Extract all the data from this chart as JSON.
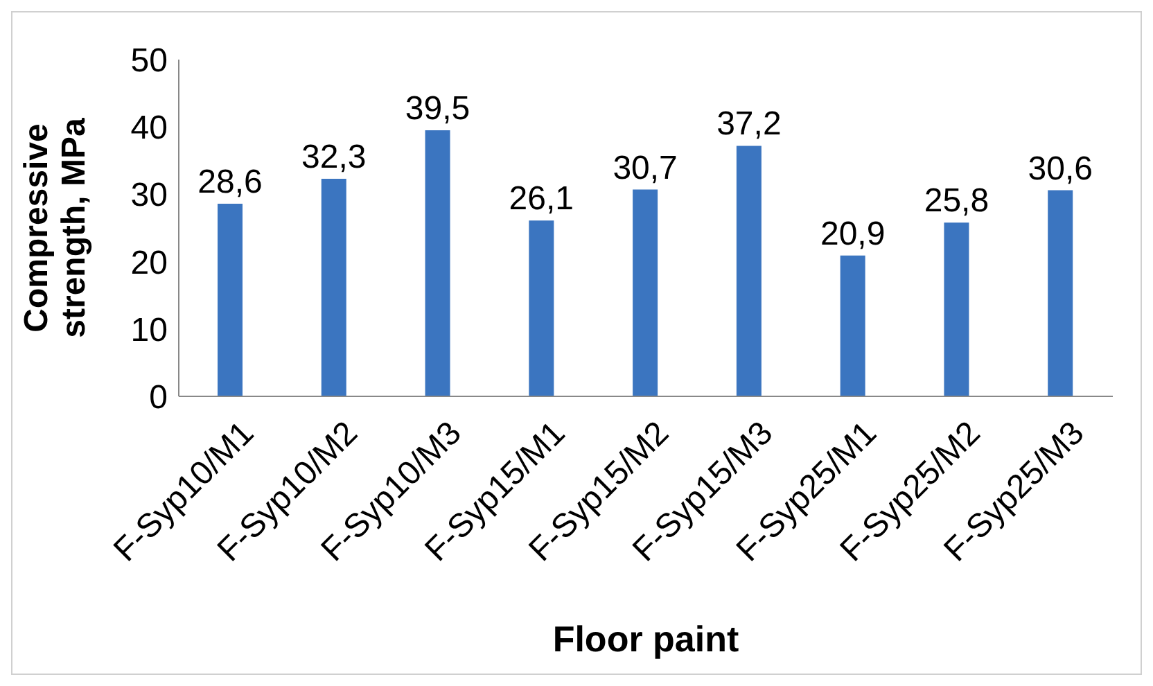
{
  "chart_data": {
    "type": "bar",
    "xlabel": "Floor paint",
    "ylabel": "Compressive strength, MPa",
    "categories": [
      "F-Syp10/M1",
      "F-Syp10/M2",
      "F-Syp10/M3",
      "F-Syp15/M1",
      "F-Syp15/M2",
      "F-Syp15/M3",
      "F-Syp25/M1",
      "F-Syp25/M2",
      "F-Syp25/M3"
    ],
    "values": [
      28.6,
      32.3,
      39.5,
      26.1,
      30.7,
      37.2,
      20.9,
      25.8,
      30.6
    ],
    "value_labels": [
      "28,6",
      "32,3",
      "39,5",
      "26,1",
      "30,7",
      "37,2",
      "20,9",
      "25,8",
      "30,6"
    ],
    "color": "#3b75c0",
    "ylim": [
      0,
      50
    ],
    "yticks": [
      0,
      10,
      20,
      30,
      40,
      50
    ],
    "grid": false,
    "legend": false
  }
}
